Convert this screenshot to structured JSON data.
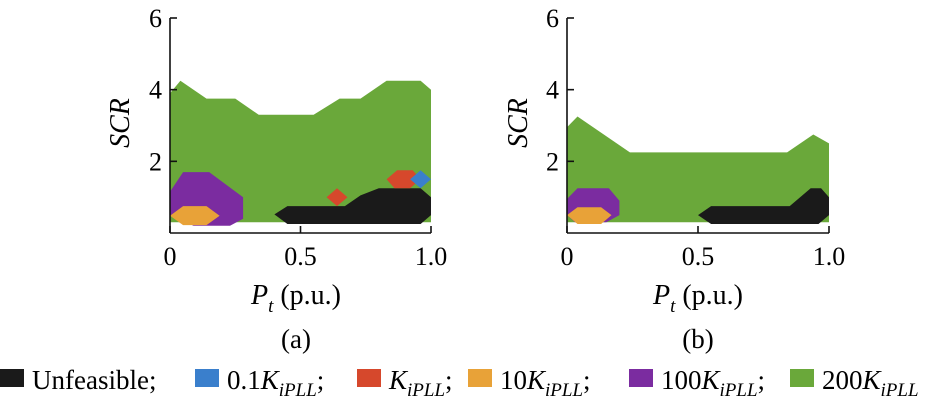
{
  "chart_data": [
    {
      "type": "area",
      "panel_label": "(a)",
      "xlabel": {
        "symbol": "P",
        "subscript": "t",
        "unit": " (p.u.)"
      },
      "ylabel": "SCR",
      "xlim": [
        0,
        1.0
      ],
      "ylim": [
        0,
        6
      ],
      "xticks": [
        {
          "value": 0,
          "label": "0"
        },
        {
          "value": 0.5,
          "label": "0.5"
        },
        {
          "value": 1.0,
          "label": "1.0"
        }
      ],
      "yticks": [
        {
          "value": 2,
          "label": "2"
        },
        {
          "value": 4,
          "label": "4"
        },
        {
          "value": 6,
          "label": "6"
        }
      ],
      "regions": [
        {
          "series": "200K",
          "color": "#6aa83a",
          "polygon": [
            [
              0,
              3.9
            ],
            [
              0.04,
              4.25
            ],
            [
              0.14,
              3.75
            ],
            [
              0.25,
              3.75
            ],
            [
              0.34,
              3.3
            ],
            [
              0.55,
              3.3
            ],
            [
              0.65,
              3.75
            ],
            [
              0.73,
              3.75
            ],
            [
              0.83,
              4.25
            ],
            [
              0.96,
              4.25
            ],
            [
              1.0,
              4.0
            ],
            [
              1.0,
              0.3
            ],
            [
              0.25,
              0.3
            ],
            [
              0,
              0.3
            ]
          ]
        },
        {
          "series": "100K",
          "color": "#7b2ca0",
          "polygon": [
            [
              0,
              1.15
            ],
            [
              0.05,
              1.7
            ],
            [
              0.15,
              1.7
            ],
            [
              0.28,
              1.0
            ],
            [
              0.28,
              0.4
            ],
            [
              0.23,
              0.2
            ],
            [
              0.09,
              0.2
            ],
            [
              0,
              0.5
            ]
          ]
        },
        {
          "series": "10K",
          "color": "#e8a238",
          "polygon": [
            [
              0,
              0.48
            ],
            [
              0.05,
              0.75
            ],
            [
              0.14,
              0.75
            ],
            [
              0.19,
              0.48
            ],
            [
              0.14,
              0.22
            ],
            [
              0.05,
              0.22
            ]
          ]
        },
        {
          "series": "Unfeasible",
          "color": "#1a1a1a",
          "polygon": [
            [
              0.4,
              0.52
            ],
            [
              0.45,
              0.75
            ],
            [
              0.67,
              0.75
            ],
            [
              0.73,
              1.05
            ],
            [
              0.8,
              1.25
            ],
            [
              0.96,
              1.25
            ],
            [
              1.0,
              1.0
            ],
            [
              1.0,
              0.5
            ],
            [
              0.96,
              0.25
            ],
            [
              0.45,
              0.25
            ]
          ]
        },
        {
          "series": "K",
          "color": "#d6482c",
          "polygon": [
            [
              0.6,
              1.0
            ],
            [
              0.64,
              1.25
            ],
            [
              0.68,
              1.0
            ],
            [
              0.64,
              0.75
            ]
          ]
        },
        {
          "series": "K",
          "color": "#d6482c",
          "polygon": [
            [
              0.83,
              1.5
            ],
            [
              0.87,
              1.75
            ],
            [
              0.93,
              1.75
            ],
            [
              0.96,
              1.5
            ],
            [
              0.92,
              1.25
            ],
            [
              0.86,
              1.25
            ]
          ]
        },
        {
          "series": "0.1K",
          "color": "#3a7fcc",
          "polygon": [
            [
              0.92,
              1.5
            ],
            [
              0.96,
              1.75
            ],
            [
              1.0,
              1.5
            ],
            [
              0.96,
              1.25
            ]
          ]
        }
      ]
    },
    {
      "type": "area",
      "panel_label": "(b)",
      "xlabel": {
        "symbol": "P",
        "subscript": "t",
        "unit": " (p.u.)"
      },
      "ylabel": "SCR",
      "xlim": [
        0,
        1.0
      ],
      "ylim": [
        0,
        6
      ],
      "xticks": [
        {
          "value": 0,
          "label": "0"
        },
        {
          "value": 0.5,
          "label": "0.5"
        },
        {
          "value": 1.0,
          "label": "1.0"
        }
      ],
      "yticks": [
        {
          "value": 2,
          "label": "2"
        },
        {
          "value": 4,
          "label": "4"
        },
        {
          "value": 6,
          "label": "6"
        }
      ],
      "regions": [
        {
          "series": "200K",
          "color": "#6aa83a",
          "polygon": [
            [
              0,
              2.95
            ],
            [
              0.04,
              3.25
            ],
            [
              0.24,
              2.25
            ],
            [
              0.84,
              2.25
            ],
            [
              0.94,
              2.75
            ],
            [
              1.0,
              2.5
            ],
            [
              1.0,
              0.3
            ],
            [
              0,
              0.3
            ]
          ]
        },
        {
          "series": "100K",
          "color": "#7b2ca0",
          "polygon": [
            [
              0,
              0.95
            ],
            [
              0.04,
              1.25
            ],
            [
              0.16,
              1.25
            ],
            [
              0.2,
              0.9
            ],
            [
              0.2,
              0.5
            ],
            [
              0.15,
              0.3
            ],
            [
              0.03,
              0.3
            ],
            [
              0,
              0.5
            ]
          ]
        },
        {
          "series": "10K",
          "color": "#e8a238",
          "polygon": [
            [
              0,
              0.5
            ],
            [
              0.04,
              0.72
            ],
            [
              0.13,
              0.72
            ],
            [
              0.17,
              0.5
            ],
            [
              0.13,
              0.25
            ],
            [
              0.04,
              0.25
            ]
          ]
        },
        {
          "series": "Unfeasible",
          "color": "#1a1a1a",
          "polygon": [
            [
              0.5,
              0.5
            ],
            [
              0.55,
              0.75
            ],
            [
              0.85,
              0.75
            ],
            [
              0.93,
              1.25
            ],
            [
              0.97,
              1.25
            ],
            [
              1.0,
              1.0
            ],
            [
              1.0,
              0.5
            ],
            [
              0.96,
              0.25
            ],
            [
              0.55,
              0.25
            ]
          ]
        }
      ]
    }
  ],
  "legend": [
    {
      "color": "#1a1a1a",
      "text": "Unfeasible;",
      "coef": "",
      "var": ""
    },
    {
      "color": "#3a7fcc",
      "text": "",
      "coef": "0.1",
      "var": "K",
      "sub": "iPLL",
      "suffix": ";"
    },
    {
      "color": "#d6482c",
      "text": "",
      "coef": "",
      "var": "K",
      "sub": "iPLL",
      "suffix": ";"
    },
    {
      "color": "#e8a238",
      "text": "",
      "coef": "10",
      "var": "K",
      "sub": "iPLL",
      "suffix": ";"
    },
    {
      "color": "#7b2ca0",
      "text": "",
      "coef": "100",
      "var": "K",
      "sub": "iPLL",
      "suffix": ";"
    },
    {
      "color": "#6aa83a",
      "text": "",
      "coef": "200",
      "var": "K",
      "sub": "iPLL",
      "suffix": ""
    }
  ]
}
